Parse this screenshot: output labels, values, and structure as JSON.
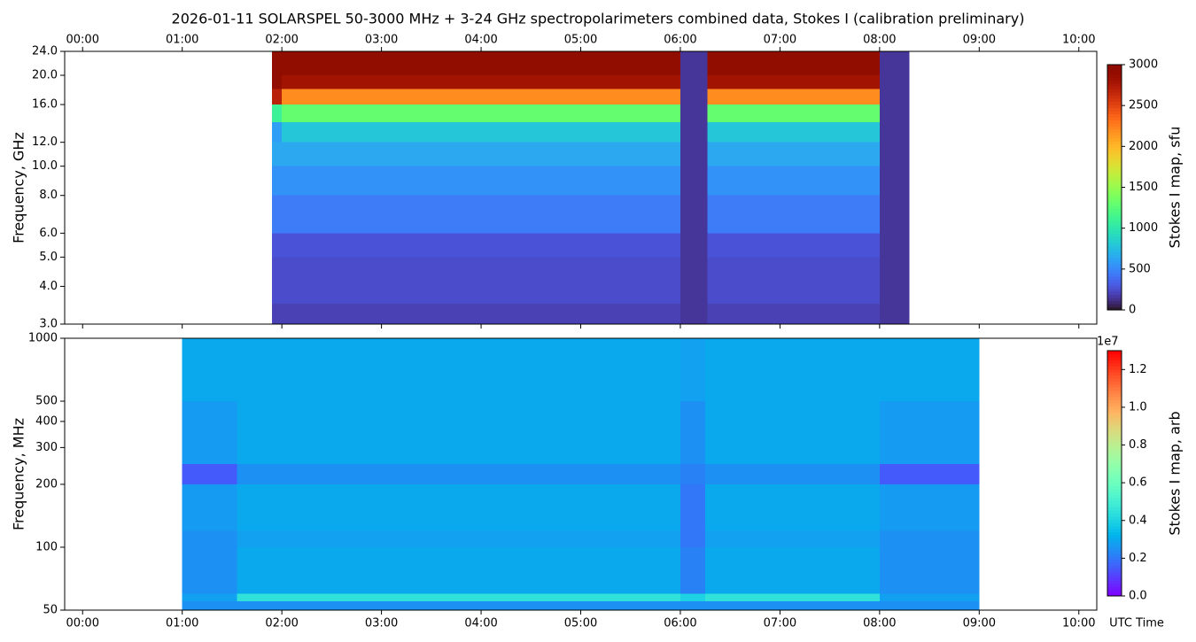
{
  "chart_data": [
    {
      "type": "heatmap",
      "title": "2026-01-11  SOLARSPEL  50-3000 MHz  +  3-24 GHz  spectropolarimeters combined data,  Stokes I  (calibration preliminary)",
      "ylabel": "Frequency, GHz",
      "colorbar_label": "Stokes I map, sfu",
      "colormap": "turbo",
      "log_y": true,
      "xlim": [
        -0.18,
        10.18
      ],
      "xticks": [
        {
          "value": 0,
          "label": "00:00"
        },
        {
          "value": 1,
          "label": "01:00"
        },
        {
          "value": 2,
          "label": "02:00"
        },
        {
          "value": 3,
          "label": "03:00"
        },
        {
          "value": 4,
          "label": "04:00"
        },
        {
          "value": 5,
          "label": "05:00"
        },
        {
          "value": 6,
          "label": "06:00"
        },
        {
          "value": 7,
          "label": "07:00"
        },
        {
          "value": 8,
          "label": "08:00"
        },
        {
          "value": 9,
          "label": "09:00"
        },
        {
          "value": 10,
          "label": "10:00"
        }
      ],
      "ylim": [
        3,
        24
      ],
      "yticks": [
        {
          "value": 3,
          "label": "3.0"
        },
        {
          "value": 4,
          "label": "4.0"
        },
        {
          "value": 5,
          "label": "5.0"
        },
        {
          "value": 6,
          "label": "6.0"
        },
        {
          "value": 8,
          "label": "8.0"
        },
        {
          "value": 10,
          "label": "10.0"
        },
        {
          "value": 12,
          "label": "12.0"
        },
        {
          "value": 16,
          "label": "16.0"
        },
        {
          "value": 20,
          "label": "20.0"
        },
        {
          "value": 24,
          "label": "24.0"
        }
      ],
      "clim": [
        0,
        3000
      ],
      "cticks": [
        0,
        500,
        1000,
        1500,
        2000,
        2500,
        3000
      ],
      "x_edges": [
        1.9,
        2.0,
        6.0,
        6.27,
        8.0,
        8.3
      ],
      "y_edges": [
        3,
        3.5,
        5,
        6,
        8,
        10,
        12,
        14,
        16,
        18,
        20,
        24
      ],
      "z": [
        [
          200,
          250,
          280,
          450,
          550,
          650,
          600,
          1100,
          2700,
          3000,
          3000
        ],
        [
          200,
          250,
          280,
          450,
          550,
          650,
          800,
          1300,
          2200,
          2800,
          3000
        ],
        [
          150,
          150,
          150,
          150,
          150,
          150,
          150,
          150,
          150,
          150,
          150
        ],
        [
          200,
          250,
          280,
          450,
          550,
          650,
          800,
          1300,
          2200,
          2800,
          3000
        ],
        [
          150,
          150,
          150,
          150,
          150,
          150,
          150,
          150,
          150,
          150,
          150
        ]
      ]
    },
    {
      "type": "heatmap",
      "ylabel": "Frequency, MHz",
      "xlabel": "UTC Time",
      "colorbar_label": "Stokes I map, arb",
      "colorbar_offset": "1e7",
      "colormap": "rainbow",
      "log_y": true,
      "xlim": [
        -0.18,
        10.18
      ],
      "xticks": [
        {
          "value": 0,
          "label": "00:00"
        },
        {
          "value": 1,
          "label": "01:00"
        },
        {
          "value": 2,
          "label": "02:00"
        },
        {
          "value": 3,
          "label": "03:00"
        },
        {
          "value": 4,
          "label": "04:00"
        },
        {
          "value": 5,
          "label": "05:00"
        },
        {
          "value": 6,
          "label": "06:00"
        },
        {
          "value": 7,
          "label": "07:00"
        },
        {
          "value": 8,
          "label": "08:00"
        },
        {
          "value": 9,
          "label": "09:00"
        },
        {
          "value": 10,
          "label": "10:00"
        }
      ],
      "ylim": [
        50,
        1000
      ],
      "yticks": [
        50,
        100,
        200,
        300,
        400,
        500,
        1000
      ],
      "clim": [
        0,
        1.3
      ],
      "cticks": [
        {
          "value": 0,
          "label": "0.0"
        },
        0.2,
        0.4,
        0.6,
        0.8,
        {
          "value": 1,
          "label": "1.0"
        },
        1.2
      ],
      "x_edges": [
        1.0,
        1.55,
        6.0,
        6.25,
        8.0,
        9.0
      ],
      "y_edges": [
        50,
        55,
        60,
        100,
        120,
        200,
        250,
        500,
        1000
      ],
      "z": [
        [
          0.25,
          0.28,
          0.25,
          0.25,
          0.27,
          0.15,
          0.27,
          0.3
        ],
        [
          0.25,
          0.45,
          0.3,
          0.28,
          0.3,
          0.25,
          0.3,
          0.3
        ],
        [
          0.25,
          0.4,
          0.22,
          0.2,
          0.2,
          0.22,
          0.25,
          0.28
        ],
        [
          0.25,
          0.45,
          0.3,
          0.28,
          0.3,
          0.25,
          0.3,
          0.3
        ],
        [
          0.25,
          0.28,
          0.25,
          0.25,
          0.27,
          0.15,
          0.27,
          0.3
        ]
      ]
    }
  ]
}
